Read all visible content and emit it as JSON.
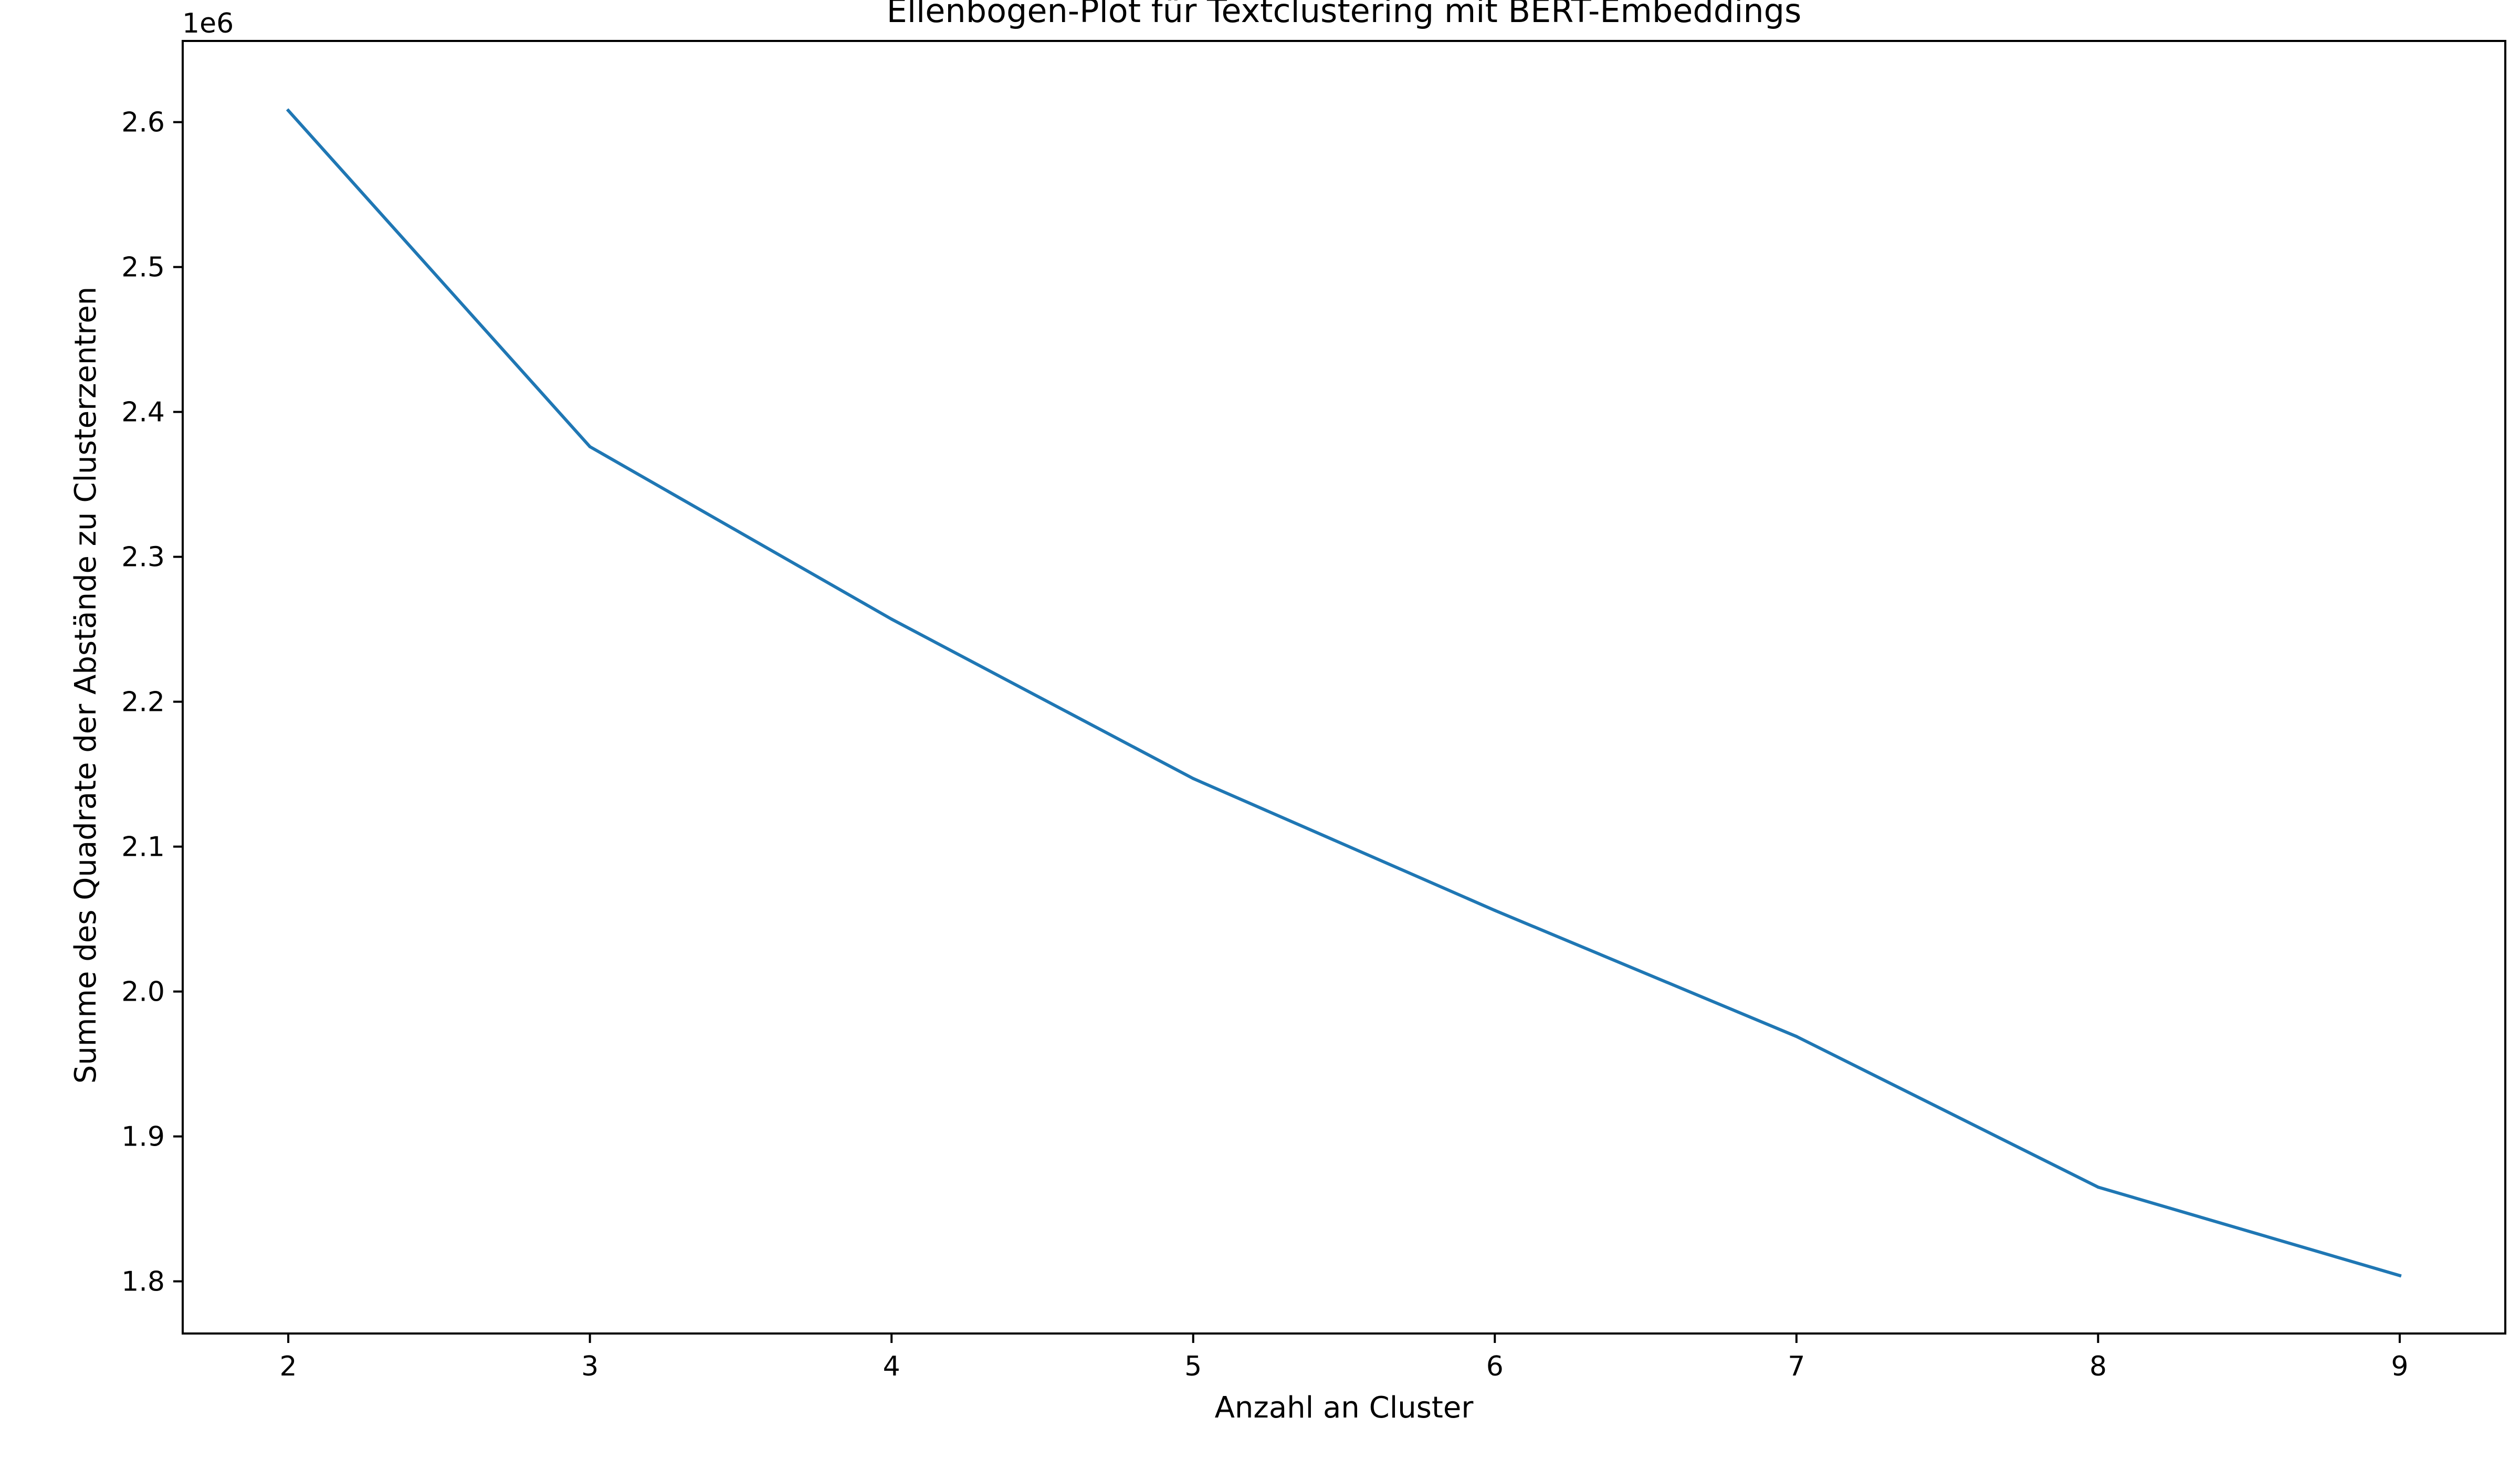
{
  "chart_data": {
    "type": "line",
    "title": "Ellenbogen-Plot für Textclustering mit BERT-Embeddings",
    "xlabel": "Anzahl an Cluster",
    "ylabel": "Summe des Quadrate der Abstände zu Clusterzentren",
    "y_offset_label": "1e6",
    "x": [
      2,
      3,
      4,
      5,
      6,
      7,
      8,
      9
    ],
    "series": [
      {
        "values": [
          2.608,
          2.376,
          2.257,
          2.147,
          2.056,
          1.969,
          1.865,
          1.804
        ],
        "color": "#1f77b4"
      }
    ],
    "xlim": [
      1.65,
      9.35
    ],
    "ylim": [
      1.764,
      2.656
    ],
    "x_ticks": [
      "2",
      "3",
      "4",
      "5",
      "6",
      "7",
      "8",
      "9"
    ],
    "y_ticks": [
      "1.8",
      "1.9",
      "2.0",
      "2.1",
      "2.2",
      "2.3",
      "2.4",
      "2.5",
      "2.6"
    ],
    "grid": false,
    "legend": "none"
  }
}
